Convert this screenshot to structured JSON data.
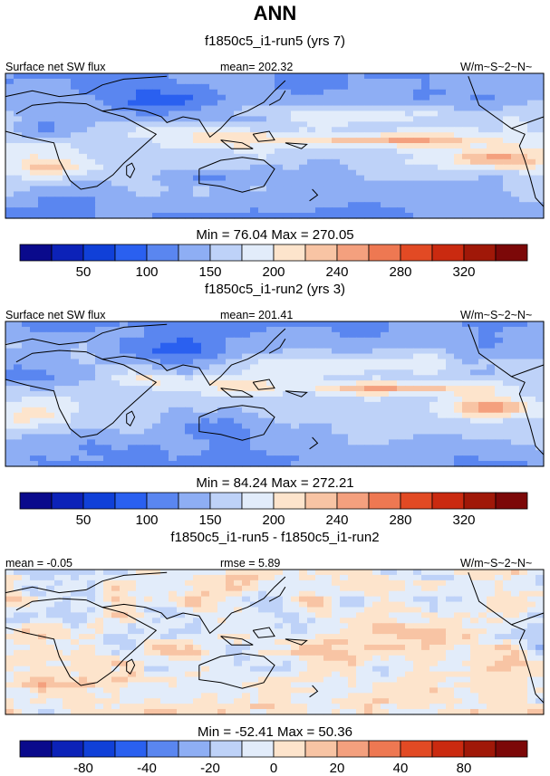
{
  "title": "ANN",
  "colors": {
    "palette": [
      "#0a0a8c",
      "#0c22b8",
      "#1040d8",
      "#2a60f0",
      "#5a86f0",
      "#8eaef4",
      "#bed2f8",
      "#e2ecfa",
      "#fde4cc",
      "#f8c4a4",
      "#f4a07e",
      "#ee7852",
      "#e24a24",
      "#ca2a10",
      "#a01808",
      "#7c0808"
    ],
    "land_outline": "#000000",
    "panel_border": "#000000"
  },
  "chart_data": [
    {
      "type": "heatmap",
      "subtitle": "f1850c5_i1-run5 (yrs 7)",
      "left_label": "Surface net SW flux",
      "center_label": "mean= 202.32",
      "right_label": "W/m~S~2~N~",
      "min_max_label": "Min =  76.04 Max = 270.05",
      "min": 76.04,
      "max": 270.05,
      "mean": 202.32,
      "colorbar_tick_labels": [
        "50",
        "100",
        "150",
        "200",
        "240",
        "280",
        "320"
      ],
      "colorbar_levels": [
        25,
        50,
        75,
        100,
        125,
        150,
        175,
        200,
        220,
        240,
        260,
        280,
        300,
        320,
        340
      ]
    },
    {
      "type": "heatmap",
      "subtitle": "f1850c5_i1-run2 (yrs 3)",
      "left_label": "Surface net SW flux",
      "center_label": "mean= 201.41",
      "right_label": "W/m~S~2~N~",
      "min_max_label": "Min =  84.24 Max = 272.21",
      "min": 84.24,
      "max": 272.21,
      "mean": 201.41,
      "colorbar_tick_labels": [
        "50",
        "100",
        "150",
        "200",
        "240",
        "280",
        "320"
      ],
      "colorbar_levels": [
        25,
        50,
        75,
        100,
        125,
        150,
        175,
        200,
        220,
        240,
        260,
        280,
        300,
        320,
        340
      ]
    },
    {
      "type": "heatmap",
      "subtitle": "f1850c5_i1-run5 - f1850c5_i1-run2",
      "left_label": "mean =  -0.05",
      "center_label": "rmse =   5.89",
      "right_label": "W/m~S~2~N~",
      "min_max_label": "Min = -52.41 Max =  50.36",
      "min": -52.41,
      "max": 50.36,
      "mean": -0.05,
      "rmse": 5.89,
      "colorbar_tick_labels": [
        "-80",
        "-40",
        "-20",
        "0",
        "20",
        "40",
        "80"
      ],
      "colorbar_levels": [
        -100,
        -80,
        -60,
        -40,
        -30,
        -20,
        -10,
        0,
        10,
        20,
        30,
        40,
        60,
        80,
        100
      ]
    }
  ]
}
